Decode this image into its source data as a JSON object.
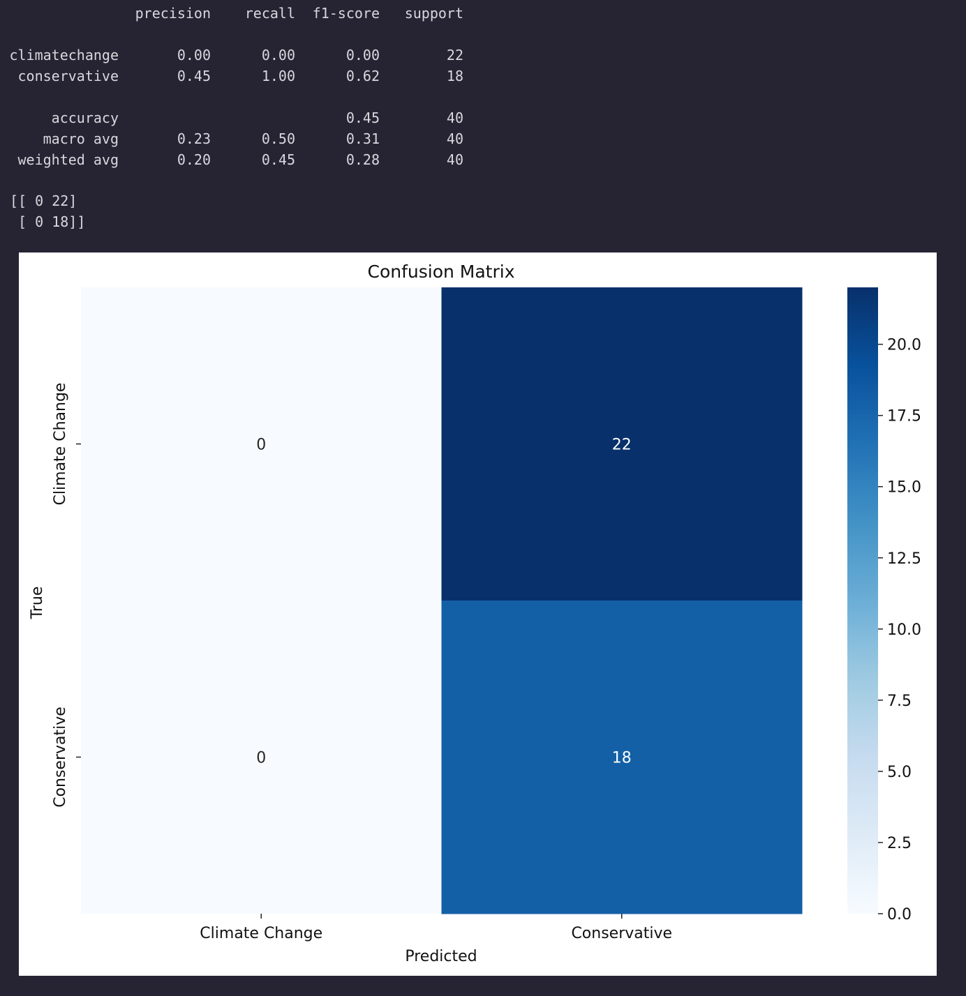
{
  "report": {
    "header": [
      "precision",
      "recall",
      "f1-score",
      "support"
    ],
    "rows": [
      {
        "label": "climatechange",
        "values": [
          "0.00",
          "0.00",
          "0.00",
          "22"
        ]
      },
      {
        "label": "conservative",
        "values": [
          "0.45",
          "1.00",
          "0.62",
          "18"
        ]
      },
      {
        "label": "",
        "values": [
          "",
          "",
          "",
          ""
        ]
      },
      {
        "label": "accuracy",
        "values": [
          "",
          "",
          "0.45",
          "40"
        ]
      },
      {
        "label": "macro avg",
        "values": [
          "0.23",
          "0.50",
          "0.31",
          "40"
        ]
      },
      {
        "label": "weighted avg",
        "values": [
          "0.20",
          "0.45",
          "0.28",
          "40"
        ]
      }
    ]
  },
  "matrix_print": [
    "[[ 0 22]",
    " [ 0 18]]"
  ],
  "chart_data": {
    "type": "heatmap",
    "title": "Confusion Matrix",
    "xlabel": "Predicted",
    "ylabel": "True",
    "x_categories": [
      "Climate Change",
      "Conservative"
    ],
    "y_categories": [
      "Climate Change",
      "Conservative"
    ],
    "values": [
      [
        0,
        22
      ],
      [
        0,
        18
      ]
    ],
    "annotations": [
      [
        "0",
        "22"
      ],
      [
        "0",
        "18"
      ]
    ],
    "colormap": "Blues",
    "vmin": 0,
    "vmax": 22,
    "colorbar_ticks": [
      "0.0",
      "2.5",
      "5.0",
      "7.5",
      "10.0",
      "12.5",
      "15.0",
      "17.5",
      "20.0"
    ],
    "colorbar_tick_values": [
      0,
      2.5,
      5,
      7.5,
      10,
      12.5,
      15,
      17.5,
      20
    ]
  }
}
